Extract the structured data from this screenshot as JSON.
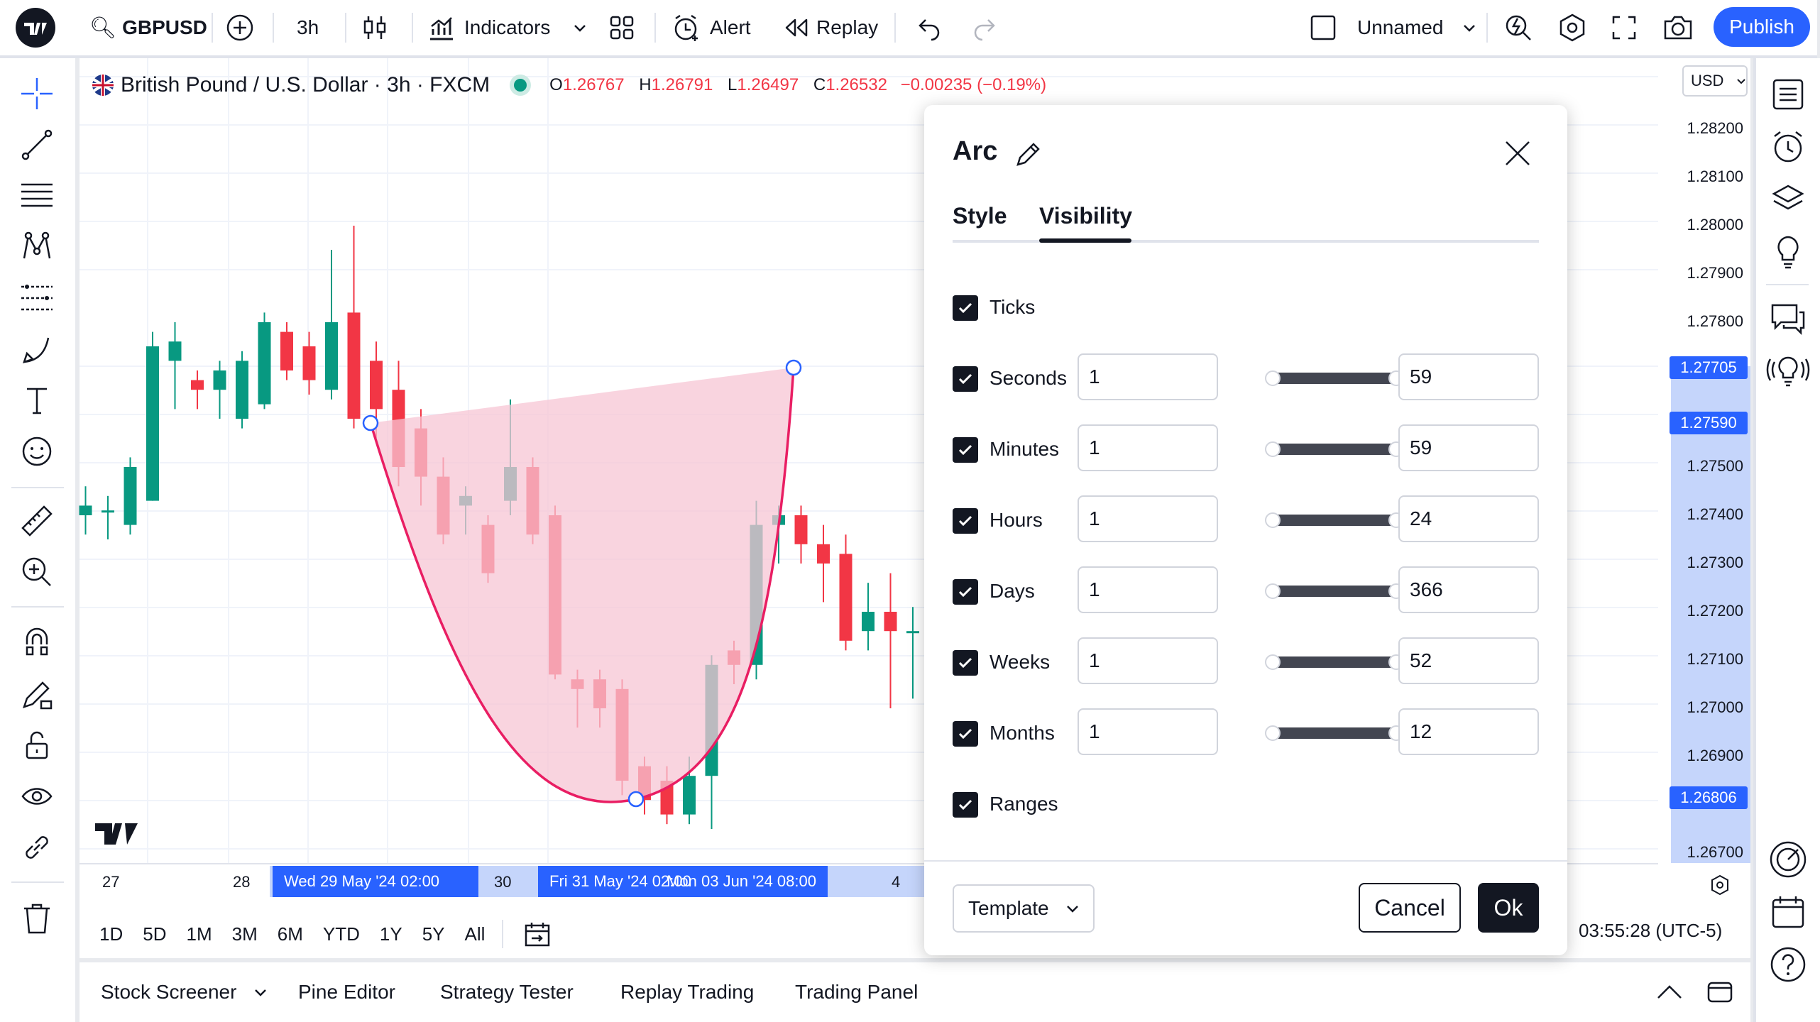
{
  "top_bar": {
    "symbol": "GBPUSD",
    "interval": "3h",
    "indicators_label": "Indicators",
    "alert_label": "Alert",
    "replay_label": "Replay",
    "layout_name": "Unnamed",
    "publish_label": "Publish"
  },
  "legend": {
    "title": "British Pound / U.S. Dollar · 3h · FXCM",
    "o_key": "O",
    "o_val": "1.26767",
    "h_key": "H",
    "h_val": "1.26791",
    "l_key": "L",
    "l_val": "1.26497",
    "c_key": "C",
    "c_val": "1.26532",
    "change": "−0.00235 (−0.19%)"
  },
  "currency_select": "USD",
  "price_axis": {
    "labels": [
      "1.28200",
      "1.28100",
      "1.28000",
      "1.27900",
      "1.27800",
      "1.27500",
      "1.27400",
      "1.27300",
      "1.27200",
      "1.27100",
      "1.27000",
      "1.26900",
      "1.26700"
    ],
    "highlight_tags": [
      "1.27705",
      "1.27590",
      "1.26806"
    ]
  },
  "time_axis": {
    "labels": [
      "27",
      "28",
      "30"
    ],
    "tag_1": "Wed 29 May '24   02:00",
    "tag_2": "Fri 31 May '24   02:00",
    "tag_3": "Mon 03 Jun '24   08:00",
    "tag_3_cut": "4"
  },
  "range_buttons": [
    "1D",
    "5D",
    "1M",
    "3M",
    "6M",
    "YTD",
    "1Y",
    "5Y",
    "All"
  ],
  "clock": "03:55:28 (UTC-5)",
  "bottom_tabs": {
    "stock_screener": "Stock Screener",
    "pine_editor": "Pine Editor",
    "strategy_tester": "Strategy Tester",
    "replay_trading": "Replay Trading",
    "trading_panel": "Trading Panel"
  },
  "dialog": {
    "title": "Arc",
    "tab_style": "Style",
    "tab_visibility": "Visibility",
    "rows": [
      {
        "label": "Ticks"
      },
      {
        "label": "Seconds",
        "min": "1",
        "max": "59"
      },
      {
        "label": "Minutes",
        "min": "1",
        "max": "59"
      },
      {
        "label": "Hours",
        "min": "1",
        "max": "24"
      },
      {
        "label": "Days",
        "min": "1",
        "max": "366"
      },
      {
        "label": "Weeks",
        "min": "1",
        "max": "52"
      },
      {
        "label": "Months",
        "min": "1",
        "max": "12"
      },
      {
        "label": "Ranges"
      }
    ],
    "template_label": "Template",
    "cancel_label": "Cancel",
    "ok_label": "Ok"
  },
  "colors": {
    "up": "#089981",
    "down": "#f23645",
    "accent": "#2962ff",
    "arc_fill": "#f7c6d4",
    "arc_stroke": "#e91e63"
  }
}
